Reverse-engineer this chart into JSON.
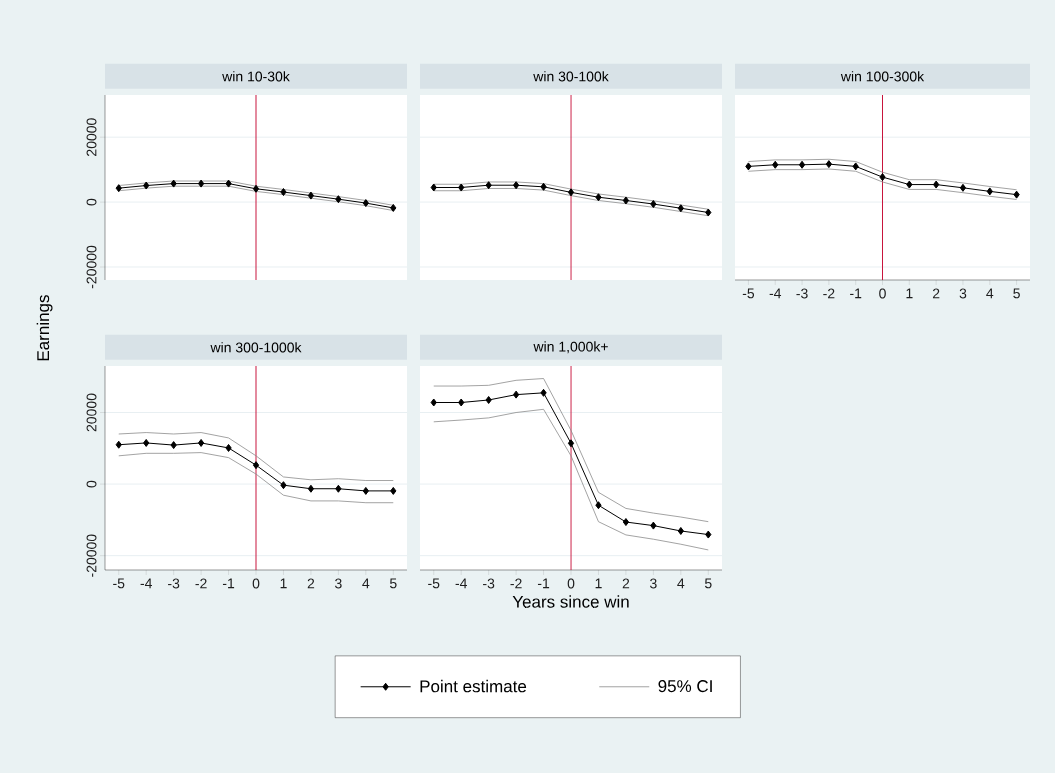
{
  "chart_data": [
    {
      "type": "line",
      "title": "win 10-30k",
      "ylabel": "Earnings",
      "x": [
        -5,
        -4,
        -3,
        -2,
        -1,
        0,
        1,
        2,
        3,
        4,
        5
      ],
      "xlim": [
        -5.5,
        5.5
      ],
      "xticks": [
        -5,
        -4,
        -3,
        -2,
        -1,
        0,
        1,
        2,
        3,
        4,
        5
      ],
      "ylim": [
        -24000,
        33000
      ],
      "yticks": [
        -20000,
        0,
        20000
      ],
      "grid": "y",
      "tick_labels": "y",
      "ref_lines": [
        {
          "axis": "x",
          "value": 0,
          "color": "#c8143c"
        }
      ],
      "series": [
        {
          "color": "#000000",
          "marker": "diamond",
          "values": [
            4300,
            5100,
            5700,
            5700,
            5700,
            4100,
            3100,
            2000,
            900,
            -300,
            -1800
          ]
        },
        {
          "color": "#8c8c8c",
          "marker": "none",
          "values": [
            5100,
            5900,
            6500,
            6500,
            6500,
            4900,
            3900,
            2800,
            1700,
            500,
            -1000
          ]
        },
        {
          "color": "#8c8c8c",
          "marker": "none",
          "values": [
            3500,
            4300,
            4900,
            4900,
            4900,
            3300,
            2300,
            1200,
            100,
            -1100,
            -2600
          ]
        }
      ]
    },
    {
      "type": "line",
      "title": "win 30-100k",
      "x": [
        -5,
        -4,
        -3,
        -2,
        -1,
        0,
        1,
        2,
        3,
        4,
        5
      ],
      "xlim": [
        -5.5,
        5.5
      ],
      "xticks": [
        -5,
        -4,
        -3,
        -2,
        -1,
        0,
        1,
        2,
        3,
        4,
        5
      ],
      "ylim": [
        -24000,
        33000
      ],
      "yticks": [
        -20000,
        0,
        20000
      ],
      "grid": "y",
      "tick_labels": false,
      "ref_lines": [
        {
          "axis": "x",
          "value": 0,
          "color": "#c8143c"
        }
      ],
      "series": [
        {
          "color": "#000000",
          "marker": "diamond",
          "values": [
            4500,
            4500,
            5200,
            5200,
            4700,
            3000,
            1500,
            500,
            -600,
            -1900,
            -3200
          ]
        },
        {
          "color": "#8c8c8c",
          "marker": "none",
          "values": [
            5500,
            5500,
            6200,
            6200,
            5700,
            4000,
            2500,
            1500,
            400,
            -900,
            -2200
          ]
        },
        {
          "color": "#8c8c8c",
          "marker": "none",
          "values": [
            3500,
            3500,
            4200,
            4200,
            3700,
            2000,
            500,
            -500,
            -1600,
            -2900,
            -4200
          ]
        }
      ]
    },
    {
      "type": "line",
      "title": "win 100-300k",
      "x": [
        -5,
        -4,
        -3,
        -2,
        -1,
        0,
        1,
        2,
        3,
        4,
        5
      ],
      "xlim": [
        -5.5,
        5.5
      ],
      "xticks": [
        -5,
        -4,
        -3,
        -2,
        -1,
        0,
        1,
        2,
        3,
        4,
        5
      ],
      "ylim": [
        -24000,
        33000
      ],
      "yticks": [
        -20000,
        0,
        20000
      ],
      "grid": "y",
      "tick_labels": "x",
      "ref_lines": [
        {
          "axis": "x",
          "value": 0,
          "color": "#c8143c"
        }
      ],
      "series": [
        {
          "color": "#000000",
          "marker": "diamond",
          "values": [
            11000,
            11500,
            11500,
            11700,
            11000,
            7700,
            5400,
            5400,
            4400,
            3300,
            2300
          ]
        },
        {
          "color": "#8c8c8c",
          "marker": "none",
          "values": [
            12500,
            13000,
            13000,
            13200,
            12500,
            9200,
            6900,
            6900,
            5900,
            4800,
            3800
          ]
        },
        {
          "color": "#8c8c8c",
          "marker": "none",
          "values": [
            9500,
            10000,
            10000,
            10200,
            9500,
            6200,
            3900,
            3900,
            2900,
            1800,
            800
          ]
        }
      ]
    },
    {
      "type": "line",
      "title": "win 300-1000k",
      "x": [
        -5,
        -4,
        -3,
        -2,
        -1,
        0,
        1,
        2,
        3,
        4,
        5
      ],
      "xlim": [
        -5.5,
        5.5
      ],
      "xticks": [
        -5,
        -4,
        -3,
        -2,
        -1,
        0,
        1,
        2,
        3,
        4,
        5
      ],
      "ylim": [
        -24000,
        33000
      ],
      "yticks": [
        -20000,
        0,
        20000
      ],
      "grid": "y",
      "ref_lines": [
        {
          "axis": "x",
          "value": 0,
          "color": "#c8143c"
        }
      ],
      "series": [
        {
          "color": "#000000",
          "marker": "diamond",
          "values": [
            11000,
            11500,
            10900,
            11500,
            10100,
            5300,
            -300,
            -1300,
            -1300,
            -1900,
            -1900
          ]
        },
        {
          "color": "#8c8c8c",
          "marker": "none",
          "values": [
            14000,
            14400,
            14000,
            14400,
            12900,
            7900,
            2000,
            1200,
            1500,
            1000,
            1000
          ]
        },
        {
          "color": "#8c8c8c",
          "marker": "none",
          "values": [
            7900,
            8600,
            8600,
            8800,
            7400,
            2800,
            -3100,
            -4700,
            -4700,
            -5200,
            -5200
          ]
        }
      ]
    },
    {
      "type": "line",
      "title": "win 1,000k+",
      "xlabel": "Years since win",
      "x": [
        -5,
        -4,
        -3,
        -2,
        -1,
        0,
        1,
        2,
        3,
        4,
        5
      ],
      "xlim": [
        -5.5,
        5.5
      ],
      "xticks": [
        -5,
        -4,
        -3,
        -2,
        -1,
        0,
        1,
        2,
        3,
        4,
        5
      ],
      "ylim": [
        -24000,
        33000
      ],
      "yticks": [
        -20000,
        0,
        20000
      ],
      "grid": "y",
      "tick_labels": "x",
      "legend": "bottom",
      "ref_lines": [
        {
          "axis": "x",
          "value": 0,
          "color": "#c8143c"
        }
      ],
      "series": [
        {
          "name": "Point estimate",
          "color": "#000000",
          "marker": "diamond",
          "values": [
            22800,
            22800,
            23500,
            25000,
            25500,
            11400,
            -5900,
            -10600,
            -11600,
            -13100,
            -14100
          ]
        },
        {
          "name": "95% CI",
          "color": "#8c8c8c",
          "marker": "none",
          "values": [
            27400,
            27400,
            27600,
            29000,
            29500,
            15000,
            -2300,
            -6800,
            -8100,
            -9200,
            -10500
          ]
        },
        {
          "color": "#8c8c8c",
          "marker": "none",
          "values": [
            17400,
            17900,
            18500,
            20000,
            20900,
            7900,
            -10500,
            -14200,
            -15400,
            -16800,
            -18400
          ]
        }
      ]
    }
  ]
}
